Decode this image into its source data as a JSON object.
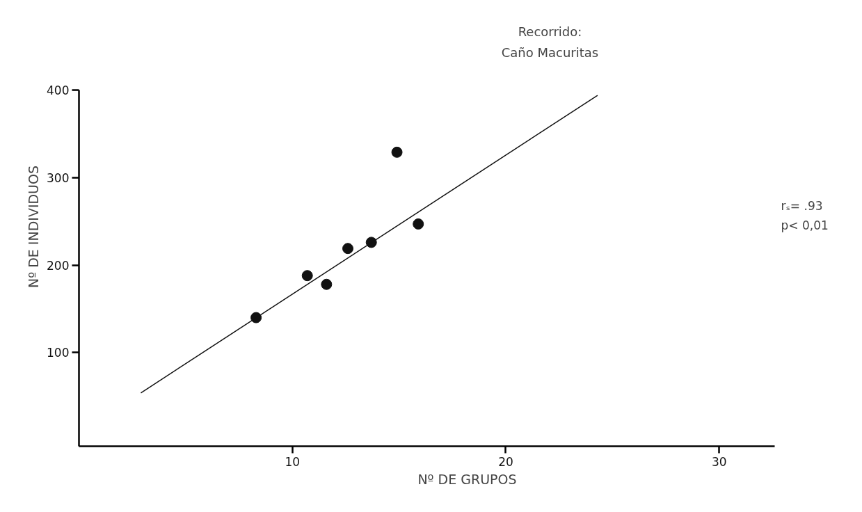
{
  "chart_data": {
    "type": "scatter",
    "title": "Recorrido:",
    "subtitle": "Caño Macuritas",
    "xlabel": "Nº DE GRUPOS",
    "ylabel": "Nº DE INDIVIDUOS",
    "xlim": [
      0,
      32.6
    ],
    "ylim": [
      -7,
      400
    ],
    "xticks": [
      10,
      20,
      30
    ],
    "yticks": [
      100,
      200,
      300,
      400
    ],
    "grid": false,
    "marker": "circle",
    "annotations": [
      "rₛ= .93",
      "p< 0,01"
    ],
    "series": [
      {
        "type": "scatter",
        "color": "#111111",
        "x": [
          8.3,
          10.7,
          11.6,
          12.6,
          13.7,
          14.9,
          15.9
        ],
        "values": [
          140,
          188,
          178,
          219,
          226,
          329,
          247
        ]
      },
      {
        "type": "line",
        "color": "#111111",
        "line_style": "solid",
        "marker": "none",
        "x": [
          2.9,
          24.3
        ],
        "values": [
          54,
          394
        ]
      }
    ]
  }
}
